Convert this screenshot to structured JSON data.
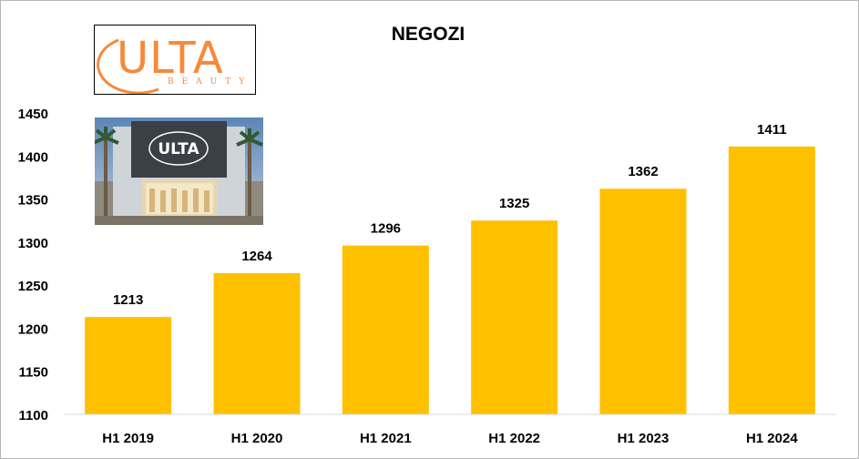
{
  "chart_data": {
    "type": "bar",
    "title": "NEGOZI",
    "categories": [
      "H1 2019",
      "H1 2020",
      "H1 2021",
      "H1 2022",
      "H1 2023",
      "H1 2024"
    ],
    "values": [
      1213,
      1264,
      1296,
      1325,
      1362,
      1411
    ],
    "xlabel": "",
    "ylabel": "",
    "ylim": [
      1100,
      1450
    ],
    "yticks": [
      1100,
      1150,
      1200,
      1250,
      1300,
      1350,
      1400,
      1450
    ],
    "grid": false,
    "data_labels": true
  },
  "colors": {
    "bar": "#FFC000",
    "axis": "#d9d9d9",
    "text": "#000000",
    "brand": "#F7893B"
  },
  "brand": {
    "logo_word": "ULTA",
    "logo_sub": "BEAUTY",
    "storefront_sign": "ULTA"
  }
}
